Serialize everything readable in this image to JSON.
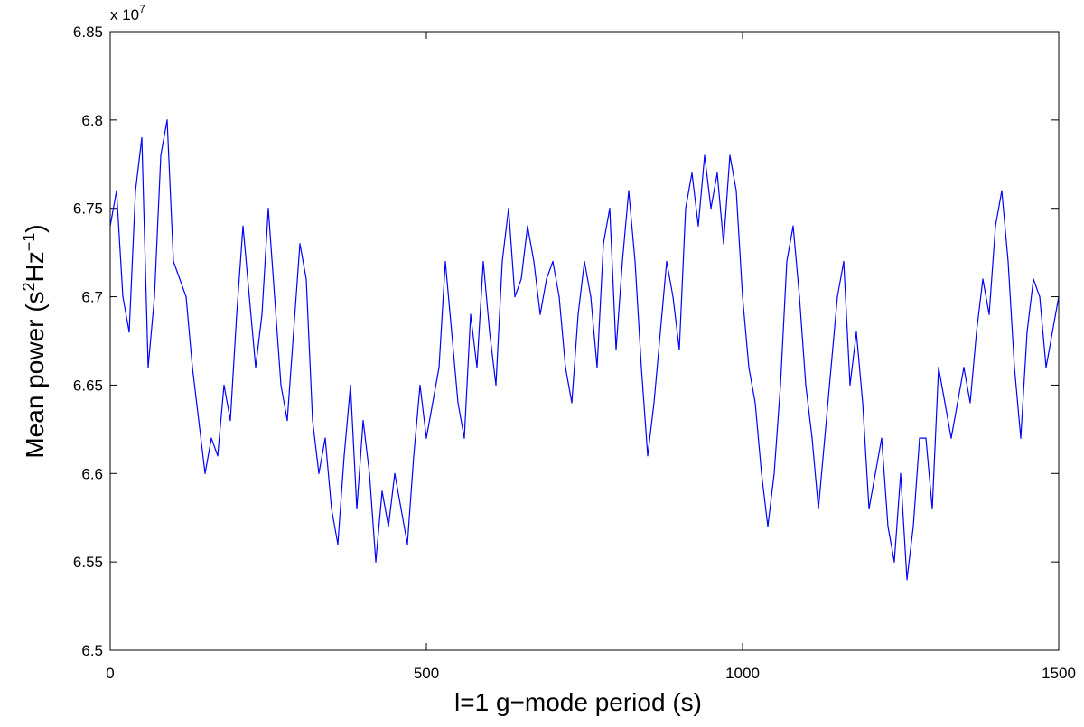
{
  "chart_data": {
    "type": "line",
    "xlabel": "l=1 g−mode period (s)",
    "ylabel_parts": {
      "main": "Mean power (s",
      "sup1": "2",
      "mid": "Hz",
      "sup2": "−1",
      "end": ")"
    },
    "y_multiplier": {
      "base": "x 10",
      "exp": "7"
    },
    "xlim": [
      0,
      1500
    ],
    "ylim": [
      6.5,
      6.85
    ],
    "xticks": [
      0,
      500,
      1000,
      1500
    ],
    "xtick_labels": [
      "0",
      "500",
      "1000",
      "1500"
    ],
    "yticks": [
      6.5,
      6.55,
      6.6,
      6.65,
      6.7,
      6.75,
      6.8,
      6.85
    ],
    "ytick_labels": [
      "6.5",
      "6.55",
      "6.6",
      "6.65",
      "6.7",
      "6.75",
      "6.8",
      "6.85"
    ],
    "grid": false,
    "series": [
      {
        "color": "#0000ff",
        "x": [
          0,
          10,
          20,
          30,
          40,
          50,
          60,
          70,
          80,
          90,
          100,
          110,
          120,
          130,
          140,
          150,
          160,
          170,
          180,
          190,
          200,
          210,
          220,
          230,
          240,
          250,
          260,
          270,
          280,
          290,
          300,
          310,
          320,
          330,
          340,
          350,
          360,
          370,
          380,
          390,
          400,
          410,
          420,
          430,
          440,
          450,
          460,
          470,
          480,
          490,
          500,
          510,
          520,
          530,
          540,
          550,
          560,
          570,
          580,
          590,
          600,
          610,
          620,
          630,
          640,
          650,
          660,
          670,
          680,
          690,
          700,
          710,
          720,
          730,
          740,
          750,
          760,
          770,
          780,
          790,
          800,
          810,
          820,
          830,
          840,
          850,
          860,
          870,
          880,
          890,
          900,
          910,
          920,
          930,
          940,
          950,
          960,
          970,
          980,
          990,
          1000,
          1010,
          1020,
          1030,
          1040,
          1050,
          1060,
          1070,
          1080,
          1090,
          1100,
          1110,
          1120,
          1130,
          1140,
          1150,
          1160,
          1170,
          1180,
          1190,
          1200,
          1210,
          1220,
          1230,
          1240,
          1250,
          1260,
          1270,
          1280,
          1290,
          1300,
          1310,
          1320,
          1330,
          1340,
          1350,
          1360,
          1370,
          1380,
          1390,
          1400,
          1410,
          1420,
          1430,
          1440,
          1450,
          1460,
          1470,
          1480,
          1490,
          1500
        ],
        "y": [
          6.74,
          6.76,
          6.7,
          6.68,
          6.76,
          6.79,
          6.66,
          6.7,
          6.78,
          6.8,
          6.72,
          6.71,
          6.7,
          6.66,
          6.63,
          6.6,
          6.62,
          6.61,
          6.65,
          6.63,
          6.69,
          6.74,
          6.7,
          6.66,
          6.69,
          6.75,
          6.7,
          6.65,
          6.63,
          6.68,
          6.73,
          6.71,
          6.63,
          6.6,
          6.62,
          6.58,
          6.56,
          6.61,
          6.65,
          6.58,
          6.63,
          6.6,
          6.55,
          6.59,
          6.57,
          6.6,
          6.58,
          6.56,
          6.61,
          6.65,
          6.62,
          6.64,
          6.66,
          6.72,
          6.68,
          6.64,
          6.62,
          6.69,
          6.66,
          6.72,
          6.68,
          6.65,
          6.72,
          6.75,
          6.7,
          6.71,
          6.74,
          6.72,
          6.69,
          6.71,
          6.72,
          6.7,
          6.66,
          6.64,
          6.69,
          6.72,
          6.7,
          6.66,
          6.73,
          6.75,
          6.67,
          6.72,
          6.76,
          6.72,
          6.66,
          6.61,
          6.64,
          6.68,
          6.72,
          6.7,
          6.67,
          6.75,
          6.77,
          6.74,
          6.78,
          6.75,
          6.77,
          6.73,
          6.78,
          6.76,
          6.7,
          6.66,
          6.64,
          6.6,
          6.57,
          6.6,
          6.65,
          6.72,
          6.74,
          6.7,
          6.65,
          6.62,
          6.58,
          6.62,
          6.66,
          6.7,
          6.72,
          6.65,
          6.68,
          6.64,
          6.58,
          6.6,
          6.62,
          6.57,
          6.55,
          6.6,
          6.54,
          6.57,
          6.62,
          6.62,
          6.58,
          6.66,
          6.64,
          6.62,
          6.64,
          6.66,
          6.64,
          6.68,
          6.71,
          6.69,
          6.74,
          6.76,
          6.72,
          6.66,
          6.62,
          6.68,
          6.71,
          6.7,
          6.66,
          6.68,
          6.7
        ]
      }
    ]
  }
}
